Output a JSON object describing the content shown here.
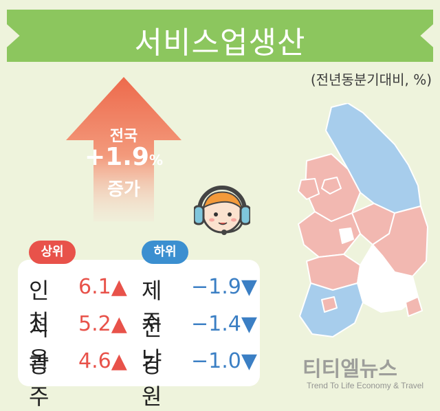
{
  "title": "서비스업생산",
  "unit_note": "(전년동분기대비, %)",
  "national": {
    "label": "전국",
    "value": "+1.9",
    "percent": "%",
    "note": "증가"
  },
  "top": {
    "badge": "상위",
    "items": [
      {
        "region": "인천",
        "value": "6.1▲"
      },
      {
        "region": "서울",
        "value": "5.2▲"
      },
      {
        "region": "광주",
        "value": "4.6▲"
      }
    ]
  },
  "bottom": {
    "badge": "하위",
    "items": [
      {
        "region": "제주",
        "value": "−1.9▼"
      },
      {
        "region": "전남",
        "value": "−1.4▼"
      },
      {
        "region": "강원",
        "value": "−1.0▼"
      }
    ]
  },
  "watermark": {
    "name": "티티엘뉴스",
    "tagline": "Trend To Life Economy & Travel"
  },
  "colors": {
    "increase": "#f2b8b1",
    "decrease": "#a7cdec",
    "no_data": "#ffffff",
    "banner": "#8cc65e"
  }
}
